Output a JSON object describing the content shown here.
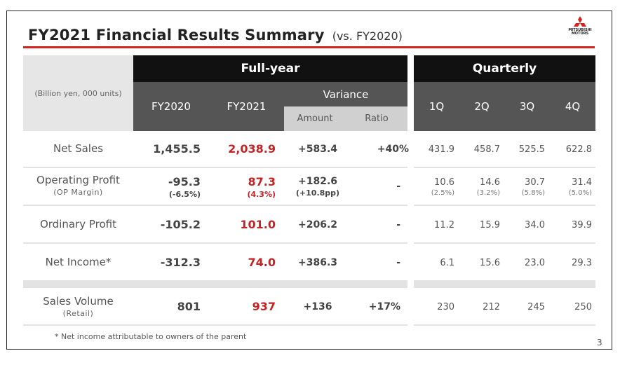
{
  "title": "FY2021 Financial Results Summary",
  "subtitle": "(vs. FY2020)",
  "logo_text": [
    "MITSUBISHI",
    "MOTORS"
  ],
  "units": "(Billion yen, 000 units)",
  "headers": {
    "full_year": "Full-year",
    "quarterly": "Quarterly",
    "fy2020": "FY2020",
    "fy2021": "FY2021",
    "variance": "Variance",
    "amount": "Amount",
    "ratio": "Ratio",
    "q1": "1Q",
    "q2": "2Q",
    "q3": "3Q",
    "q4": "4Q"
  },
  "rows": [
    {
      "label": "Net Sales",
      "label_sub": "",
      "fy2020": "1,455.5",
      "fy2020_sub": "",
      "fy2021": "2,038.9",
      "fy2021_sub": "",
      "amount": "+583.4",
      "amount_sub": "",
      "ratio": "+40%",
      "q1": "431.9",
      "q1_sub": "",
      "q2": "458.7",
      "q2_sub": "",
      "q3": "525.5",
      "q3_sub": "",
      "q4": "622.8",
      "q4_sub": ""
    },
    {
      "label": "Operating Profit",
      "label_sub": "(OP Margin)",
      "fy2020": "-95.3",
      "fy2020_sub": "(-6.5%)",
      "fy2021": "87.3",
      "fy2021_sub": "(4.3%)",
      "amount": "+182.6",
      "amount_sub": "(+10.8pp)",
      "ratio": "-",
      "q1": "10.6",
      "q1_sub": "(2.5%)",
      "q2": "14.6",
      "q2_sub": "(3.2%)",
      "q3": "30.7",
      "q3_sub": "(5.8%)",
      "q4": "31.4",
      "q4_sub": "(5.0%)"
    },
    {
      "label": "Ordinary Profit",
      "label_sub": "",
      "fy2020": "-105.2",
      "fy2020_sub": "",
      "fy2021": "101.0",
      "fy2021_sub": "",
      "amount": "+206.2",
      "amount_sub": "",
      "ratio": "-",
      "q1": "11.2",
      "q1_sub": "",
      "q2": "15.9",
      "q2_sub": "",
      "q3": "34.0",
      "q3_sub": "",
      "q4": "39.9",
      "q4_sub": ""
    },
    {
      "label": "Net Income*",
      "label_sub": "",
      "fy2020": "-312.3",
      "fy2020_sub": "",
      "fy2021": "74.0",
      "fy2021_sub": "",
      "amount": "+386.3",
      "amount_sub": "",
      "ratio": "-",
      "q1": "6.1",
      "q1_sub": "",
      "q2": "15.6",
      "q2_sub": "",
      "q3": "23.0",
      "q3_sub": "",
      "q4": "29.3",
      "q4_sub": ""
    },
    {
      "label": "Sales Volume",
      "label_sub": "(Retail)",
      "fy2020": "801",
      "fy2020_sub": "",
      "fy2021": "937",
      "fy2021_sub": "",
      "amount": "+136",
      "amount_sub": "",
      "ratio": "+17%",
      "q1": "230",
      "q1_sub": "",
      "q2": "212",
      "q2_sub": "",
      "q3": "245",
      "q3_sub": "",
      "q4": "250",
      "q4_sub": ""
    }
  ],
  "footnote": "* Net income attributable to owners of the parent",
  "page_number": "3",
  "colors": {
    "accent_red": "#d7231f",
    "value_red": "#c42324",
    "header_dark": "#111111",
    "header_grey": "#555555"
  }
}
